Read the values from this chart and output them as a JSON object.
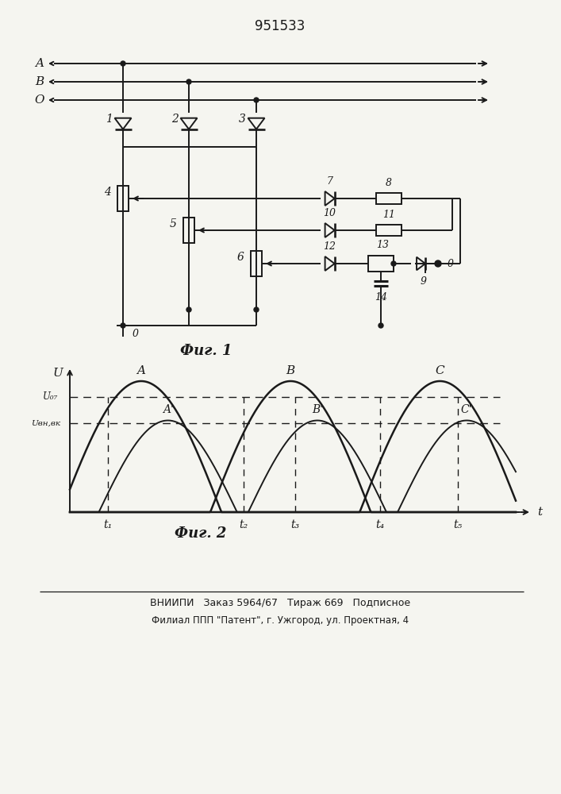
{
  "title": "951533",
  "fig1_caption": "Фиг. 1",
  "fig2_caption": "Фиг. 2",
  "footer_line1": "ВНИИПИ   Заказ 5964/67   Тираж 669   Подписное",
  "footer_line2": "Филиал ППП \"Патент\", г. Ужгород, ул. Проектная, 4",
  "bg_color": "#f5f5f0",
  "line_color": "#1a1a1a"
}
